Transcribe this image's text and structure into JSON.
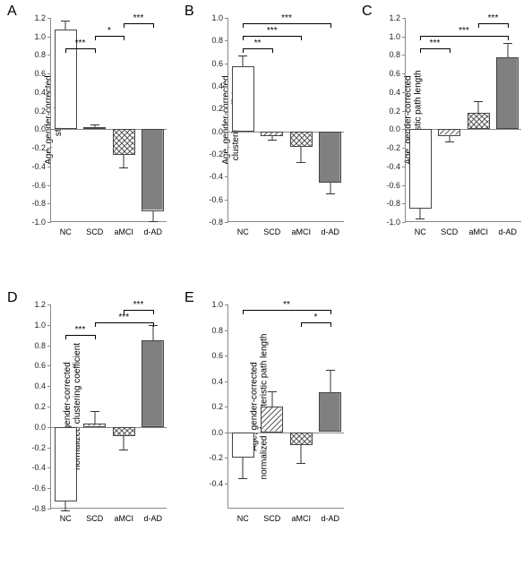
{
  "categories": [
    "NC",
    "SCD",
    "aMCI",
    "d-AD"
  ],
  "fills": {
    "NC": "#ffffff",
    "SCD": "url(#diag)",
    "aMCI": "url(#cross)",
    "d-AD": "#808080"
  },
  "colors": {
    "axis": "#888888",
    "text": "#000000",
    "bar_border": "#444444",
    "error": "#333333",
    "background": "#ffffff"
  },
  "typography": {
    "panel_label_fontsize": 16,
    "axis_tick_fontsize": 9,
    "ylabel_fontsize": 10,
    "sig_fontsize": 10
  },
  "panels": [
    {
      "id": "A",
      "ylabel": "Age, gender-corrected\nstrength",
      "ylim": [
        -1.0,
        1.2
      ],
      "ytick_step": 0.2,
      "bars": [
        {
          "cat": "NC",
          "value": 1.07,
          "err": 0.1
        },
        {
          "cat": "SCD",
          "value": 0.02,
          "err": 0.03
        },
        {
          "cat": "aMCI",
          "value": -0.28,
          "err": 0.13
        },
        {
          "cat": "d-AD",
          "value": -0.88,
          "err": 0.11
        }
      ],
      "sig": [
        {
          "from": 0,
          "to": 1,
          "level": 0,
          "label": "***"
        },
        {
          "from": 1,
          "to": 2,
          "level": 1,
          "label": "*"
        },
        {
          "from": 2,
          "to": 3,
          "level": 2,
          "label": "***"
        }
      ]
    },
    {
      "id": "B",
      "ylabel": "Age, gender-corrected\nclustering coefficient",
      "ylim": [
        -0.8,
        1.0
      ],
      "ytick_step": 0.2,
      "bars": [
        {
          "cat": "NC",
          "value": 0.57,
          "err": 0.1
        },
        {
          "cat": "SCD",
          "value": -0.04,
          "err": 0.03
        },
        {
          "cat": "aMCI",
          "value": -0.14,
          "err": 0.13
        },
        {
          "cat": "d-AD",
          "value": -0.45,
          "err": 0.1
        }
      ],
      "sig": [
        {
          "from": 0,
          "to": 1,
          "level": 0,
          "label": "**"
        },
        {
          "from": 0,
          "to": 2,
          "level": 1,
          "label": "***"
        },
        {
          "from": 0,
          "to": 3,
          "level": 2,
          "label": "***"
        }
      ]
    },
    {
      "id": "C",
      "ylabel": "Age, gender-corrected\ncharacteristic path length",
      "ylim": [
        -1.0,
        1.2
      ],
      "ytick_step": 0.2,
      "bars": [
        {
          "cat": "NC",
          "value": -0.86,
          "err": 0.1
        },
        {
          "cat": "SCD",
          "value": -0.07,
          "err": 0.06
        },
        {
          "cat": "aMCI",
          "value": 0.18,
          "err": 0.12
        },
        {
          "cat": "d-AD",
          "value": 0.78,
          "err": 0.15
        }
      ],
      "sig": [
        {
          "from": 0,
          "to": 1,
          "level": 0,
          "label": "***"
        },
        {
          "from": 0,
          "to": 3,
          "level": 1,
          "label": "***"
        },
        {
          "from": 2,
          "to": 3,
          "level": 2,
          "label": "***"
        }
      ]
    },
    {
      "id": "D",
      "ylabel": "Age, gender-corrected\nnormalized clustering coefficient",
      "ylim": [
        -0.8,
        1.2
      ],
      "ytick_step": 0.2,
      "bars": [
        {
          "cat": "NC",
          "value": -0.73,
          "err": 0.09
        },
        {
          "cat": "SCD",
          "value": 0.03,
          "err": 0.13
        },
        {
          "cat": "aMCI",
          "value": -0.09,
          "err": 0.13
        },
        {
          "cat": "d-AD",
          "value": 0.85,
          "err": 0.15
        }
      ],
      "sig": [
        {
          "from": 0,
          "to": 1,
          "level": 0,
          "label": "***"
        },
        {
          "from": 1,
          "to": 3,
          "level": 1,
          "label": "***"
        },
        {
          "from": 2,
          "to": 3,
          "level": 2,
          "label": "***"
        }
      ]
    },
    {
      "id": "E",
      "ylabel": "Age, gender-corrected\nnormalized characteristic path length",
      "ylim": [
        -0.6,
        1.0
      ],
      "ytick_step": 0.2,
      "bars": [
        {
          "cat": "NC",
          "value": -0.2,
          "err": 0.16
        },
        {
          "cat": "SCD",
          "value": 0.2,
          "err": 0.12
        },
        {
          "cat": "aMCI",
          "value": -0.1,
          "err": 0.14
        },
        {
          "cat": "d-AD",
          "value": 0.31,
          "err": 0.18
        }
      ],
      "sig": [
        {
          "from": 0,
          "to": 3,
          "level": 1,
          "label": "**"
        },
        {
          "from": 2,
          "to": 3,
          "level": 0,
          "label": "*"
        }
      ]
    }
  ]
}
